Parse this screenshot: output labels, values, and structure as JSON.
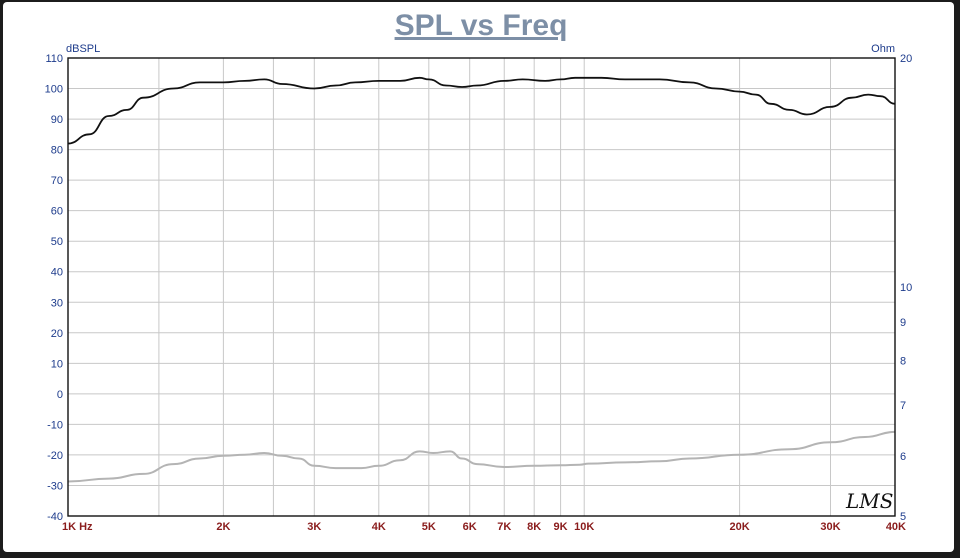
{
  "chart_data": {
    "type": "line",
    "title": "SPL vs Freq",
    "ylabel_left": "dBSPL",
    "ylabel_right": "Ohm",
    "x_scale": "log",
    "xlim": [
      1000,
      40000
    ],
    "ylim_left": [
      -40,
      110
    ],
    "ylim_right": [
      5,
      20
    ],
    "grid": true,
    "y_ticks_left": [
      110,
      100,
      90,
      80,
      70,
      60,
      50,
      40,
      30,
      20,
      10,
      0,
      -10,
      -20,
      -30,
      -40
    ],
    "y_ticks_right": [
      20,
      10,
      9,
      8,
      7,
      6,
      5
    ],
    "x_ticks": [
      {
        "value": 1000,
        "label": "1K  Hz"
      },
      {
        "value": 2000,
        "label": "2K"
      },
      {
        "value": 3000,
        "label": "3K"
      },
      {
        "value": 4000,
        "label": "4K"
      },
      {
        "value": 5000,
        "label": "5K"
      },
      {
        "value": 6000,
        "label": "6K"
      },
      {
        "value": 7000,
        "label": "7K"
      },
      {
        "value": 8000,
        "label": "8K"
      },
      {
        "value": 9000,
        "label": "9K"
      },
      {
        "value": 10000,
        "label": "10K"
      },
      {
        "value": 20000,
        "label": "20K"
      },
      {
        "value": 30000,
        "label": "30K"
      },
      {
        "value": 40000,
        "label": "40K"
      }
    ],
    "series": [
      {
        "axis": "left",
        "color": "#111111",
        "points": [
          [
            1000,
            82
          ],
          [
            1100,
            85
          ],
          [
            1200,
            91
          ],
          [
            1300,
            93
          ],
          [
            1400,
            97
          ],
          [
            1600,
            100
          ],
          [
            1800,
            102
          ],
          [
            2000,
            102
          ],
          [
            2200,
            102.5
          ],
          [
            2400,
            103
          ],
          [
            2600,
            101.5
          ],
          [
            3000,
            100
          ],
          [
            3300,
            101
          ],
          [
            3600,
            102
          ],
          [
            4000,
            102.5
          ],
          [
            4400,
            102.5
          ],
          [
            4800,
            103.5
          ],
          [
            5000,
            103
          ],
          [
            5400,
            101
          ],
          [
            5800,
            100.5
          ],
          [
            6200,
            101
          ],
          [
            7000,
            102.5
          ],
          [
            7600,
            103
          ],
          [
            8400,
            102.5
          ],
          [
            9000,
            103
          ],
          [
            9600,
            103.5
          ],
          [
            10000,
            103.5
          ],
          [
            10800,
            103.5
          ],
          [
            12000,
            103
          ],
          [
            14000,
            103
          ],
          [
            16000,
            102
          ],
          [
            18000,
            100
          ],
          [
            20000,
            99
          ],
          [
            21500,
            98
          ],
          [
            23000,
            95
          ],
          [
            25000,
            93
          ],
          [
            27000,
            91.5
          ],
          [
            30000,
            94
          ],
          [
            33000,
            97
          ],
          [
            35500,
            98
          ],
          [
            37500,
            97.5
          ],
          [
            40000,
            95
          ]
        ]
      },
      {
        "axis": "right",
        "color": "#b4b4b4",
        "points": [
          [
            1000,
            5.55
          ],
          [
            1200,
            5.6
          ],
          [
            1400,
            5.68
          ],
          [
            1600,
            5.85
          ],
          [
            1800,
            5.95
          ],
          [
            2000,
            6.0
          ],
          [
            2200,
            6.02
          ],
          [
            2400,
            6.05
          ],
          [
            2600,
            6.0
          ],
          [
            2800,
            5.95
          ],
          [
            3000,
            5.82
          ],
          [
            3300,
            5.78
          ],
          [
            3700,
            5.78
          ],
          [
            4000,
            5.82
          ],
          [
            4400,
            5.92
          ],
          [
            4800,
            6.08
          ],
          [
            5100,
            6.05
          ],
          [
            5500,
            6.08
          ],
          [
            5800,
            5.95
          ],
          [
            6200,
            5.85
          ],
          [
            7000,
            5.8
          ],
          [
            8000,
            5.82
          ],
          [
            9000,
            5.83
          ],
          [
            9800,
            5.84
          ],
          [
            10200,
            5.86
          ],
          [
            12000,
            5.88
          ],
          [
            14000,
            5.9
          ],
          [
            16000,
            5.95
          ],
          [
            20000,
            6.02
          ],
          [
            25000,
            6.12
          ],
          [
            30000,
            6.25
          ],
          [
            35000,
            6.35
          ],
          [
            40000,
            6.45
          ]
        ]
      }
    ],
    "logo": "LMS"
  }
}
